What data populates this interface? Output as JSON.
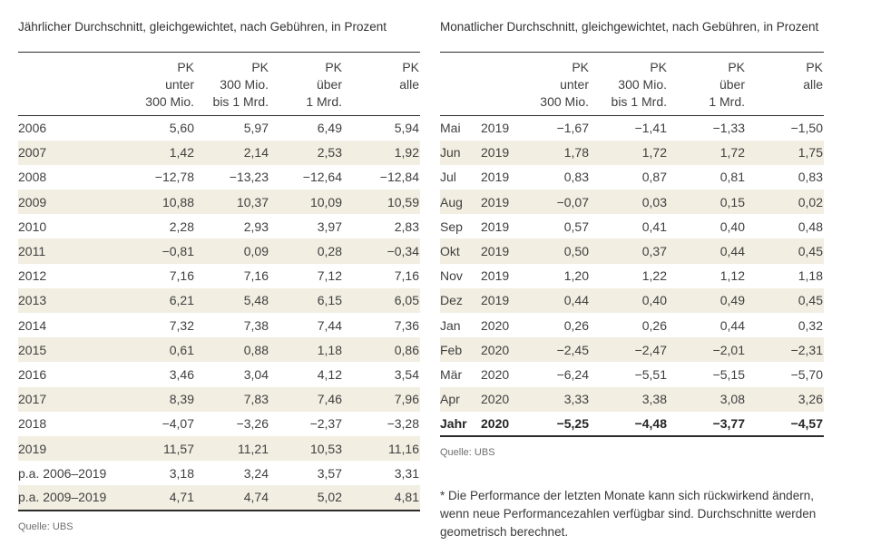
{
  "annual_table": {
    "title": "Jährlicher Durchschnitt, gleichgewichtet, nach Gebühren, in Prozent",
    "label_columns": 1,
    "columns": [
      [
        "PK",
        "unter",
        "300 Mio."
      ],
      [
        "PK",
        "300 Mio.",
        "bis 1 Mrd."
      ],
      [
        "PK",
        "über",
        "1 Mrd."
      ],
      [
        "PK",
        "alle"
      ]
    ],
    "rows": [
      {
        "labels": [
          "2006"
        ],
        "values": [
          "5,60",
          "5,97",
          "6,49",
          "5,94"
        ]
      },
      {
        "labels": [
          "2007"
        ],
        "values": [
          "1,42",
          "2,14",
          "2,53",
          "1,92"
        ]
      },
      {
        "labels": [
          "2008"
        ],
        "values": [
          "−12,78",
          "−13,23",
          "−12,64",
          "−12,84"
        ]
      },
      {
        "labels": [
          "2009"
        ],
        "values": [
          "10,88",
          "10,37",
          "10,09",
          "10,59"
        ]
      },
      {
        "labels": [
          "2010"
        ],
        "values": [
          "2,28",
          "2,93",
          "3,97",
          "2,83"
        ]
      },
      {
        "labels": [
          "2011"
        ],
        "values": [
          "−0,81",
          "0,09",
          "0,28",
          "−0,34"
        ]
      },
      {
        "labels": [
          "2012"
        ],
        "values": [
          "7,16",
          "7,16",
          "7,12",
          "7,16"
        ]
      },
      {
        "labels": [
          "2013"
        ],
        "values": [
          "6,21",
          "5,48",
          "6,15",
          "6,05"
        ]
      },
      {
        "labels": [
          "2014"
        ],
        "values": [
          "7,32",
          "7,38",
          "7,44",
          "7,36"
        ]
      },
      {
        "labels": [
          "2015"
        ],
        "values": [
          "0,61",
          "0,88",
          "1,18",
          "0,86"
        ]
      },
      {
        "labels": [
          "2016"
        ],
        "values": [
          "3,46",
          "3,04",
          "4,12",
          "3,54"
        ]
      },
      {
        "labels": [
          "2017"
        ],
        "values": [
          "8,39",
          "7,83",
          "7,46",
          "7,96"
        ]
      },
      {
        "labels": [
          "2018"
        ],
        "values": [
          "−4,07",
          "−3,26",
          "−2,37",
          "−3,28"
        ]
      },
      {
        "labels": [
          "2019"
        ],
        "values": [
          "11,57",
          "11,21",
          "10,53",
          "11,16"
        ]
      },
      {
        "labels": [
          "p.a. 2006–2019"
        ],
        "values": [
          "3,18",
          "3,24",
          "3,57",
          "3,31"
        ]
      },
      {
        "labels": [
          "p.a. 2009–2019"
        ],
        "values": [
          "4,71",
          "4,74",
          "5,02",
          "4,81"
        ]
      }
    ],
    "source": "Quelle: UBS"
  },
  "monthly_table": {
    "title": "Monatlicher Durchschnitt, gleichgewichtet, nach Gebühren, in Prozent",
    "label_columns": 2,
    "columns": [
      [
        "PK",
        "unter",
        "300 Mio."
      ],
      [
        "PK",
        "300 Mio.",
        "bis 1 Mrd."
      ],
      [
        "PK",
        "über",
        "1 Mrd."
      ],
      [
        "PK",
        "alle"
      ]
    ],
    "rows": [
      {
        "labels": [
          "Mai",
          "2019"
        ],
        "values": [
          "−1,67",
          "−1,41",
          "−1,33",
          "−1,50"
        ]
      },
      {
        "labels": [
          "Jun",
          "2019"
        ],
        "values": [
          "1,78",
          "1,72",
          "1,72",
          "1,75"
        ]
      },
      {
        "labels": [
          "Jul",
          "2019"
        ],
        "values": [
          "0,83",
          "0,87",
          "0,81",
          "0,83"
        ]
      },
      {
        "labels": [
          "Aug",
          "2019"
        ],
        "values": [
          "−0,07",
          "0,03",
          "0,15",
          "0,02"
        ]
      },
      {
        "labels": [
          "Sep",
          "2019"
        ],
        "values": [
          "0,57",
          "0,41",
          "0,40",
          "0,48"
        ]
      },
      {
        "labels": [
          "Okt",
          "2019"
        ],
        "values": [
          "0,50",
          "0,37",
          "0,44",
          "0,45"
        ]
      },
      {
        "labels": [
          "Nov",
          "2019"
        ],
        "values": [
          "1,20",
          "1,22",
          "1,12",
          "1,18"
        ]
      },
      {
        "labels": [
          "Dez",
          "2019"
        ],
        "values": [
          "0,44",
          "0,40",
          "0,49",
          "0,45"
        ]
      },
      {
        "labels": [
          "Jan",
          "2020"
        ],
        "values": [
          "0,26",
          "0,26",
          "0,44",
          "0,32"
        ]
      },
      {
        "labels": [
          "Feb",
          "2020"
        ],
        "values": [
          "−2,45",
          "−2,47",
          "−2,01",
          "−2,31"
        ]
      },
      {
        "labels": [
          "Mär",
          "2020"
        ],
        "values": [
          "−6,24",
          "−5,51",
          "−5,15",
          "−5,70"
        ]
      },
      {
        "labels": [
          "Apr",
          "2020"
        ],
        "values": [
          "3,33",
          "3,38",
          "3,08",
          "3,26"
        ]
      },
      {
        "labels": [
          "Jahr",
          "2020"
        ],
        "values": [
          "−5,25",
          "−4,48",
          "−3,77",
          "−4,57"
        ],
        "bold": true
      }
    ],
    "source": "Quelle: UBS",
    "footnote": "* Die Performance der letzten Monate kann sich rückwirkend ändern, wenn neue Performancezahlen verfügbar sind. Durchschnitte werden geometrisch berechnet."
  },
  "colors": {
    "stripe": "#f2eee2",
    "rule": "#2b2b2b",
    "text": "#404040",
    "title_text": "#333333",
    "source_text": "#6e6e6e"
  }
}
